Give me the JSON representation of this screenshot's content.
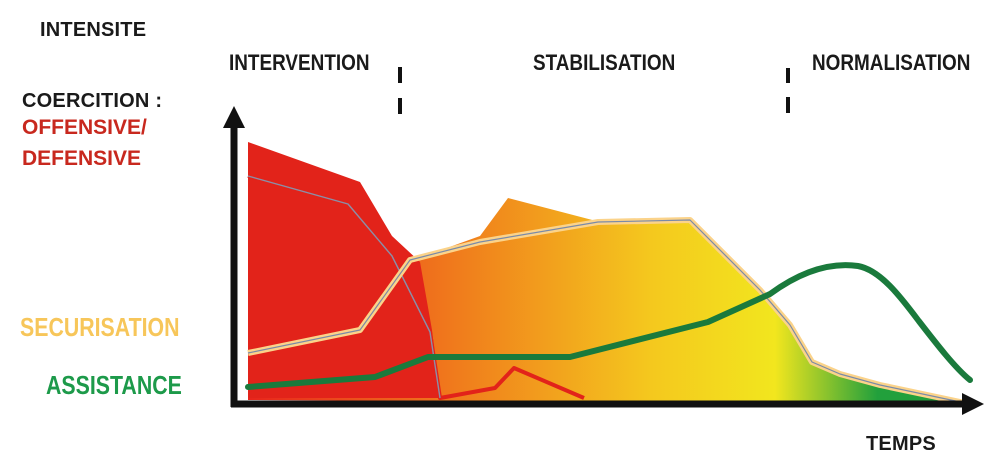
{
  "y_axis": {
    "title": "INTENSITE",
    "coercion_label": "COERCITION :",
    "coercion_sub1": "OFFENSIVE/",
    "coercion_sub2": "DEFENSIVE",
    "securisation_label": "SECURISATION",
    "assistance_label": "ASSISTANCE"
  },
  "x_axis": {
    "label": "TEMPS"
  },
  "phases": [
    {
      "name": "INTERVENTION"
    },
    {
      "name": "STABILISATION"
    },
    {
      "name": "NORMALISATION"
    }
  ],
  "colors": {
    "coercion": "#e2231a",
    "securisation": "#fbd38a",
    "assistance": "#1a7a3c",
    "axis": "#111111",
    "gradient": [
      "#e8241c",
      "#f07a1c",
      "#f4c81e",
      "#f2e61e",
      "#22a03c"
    ]
  }
}
